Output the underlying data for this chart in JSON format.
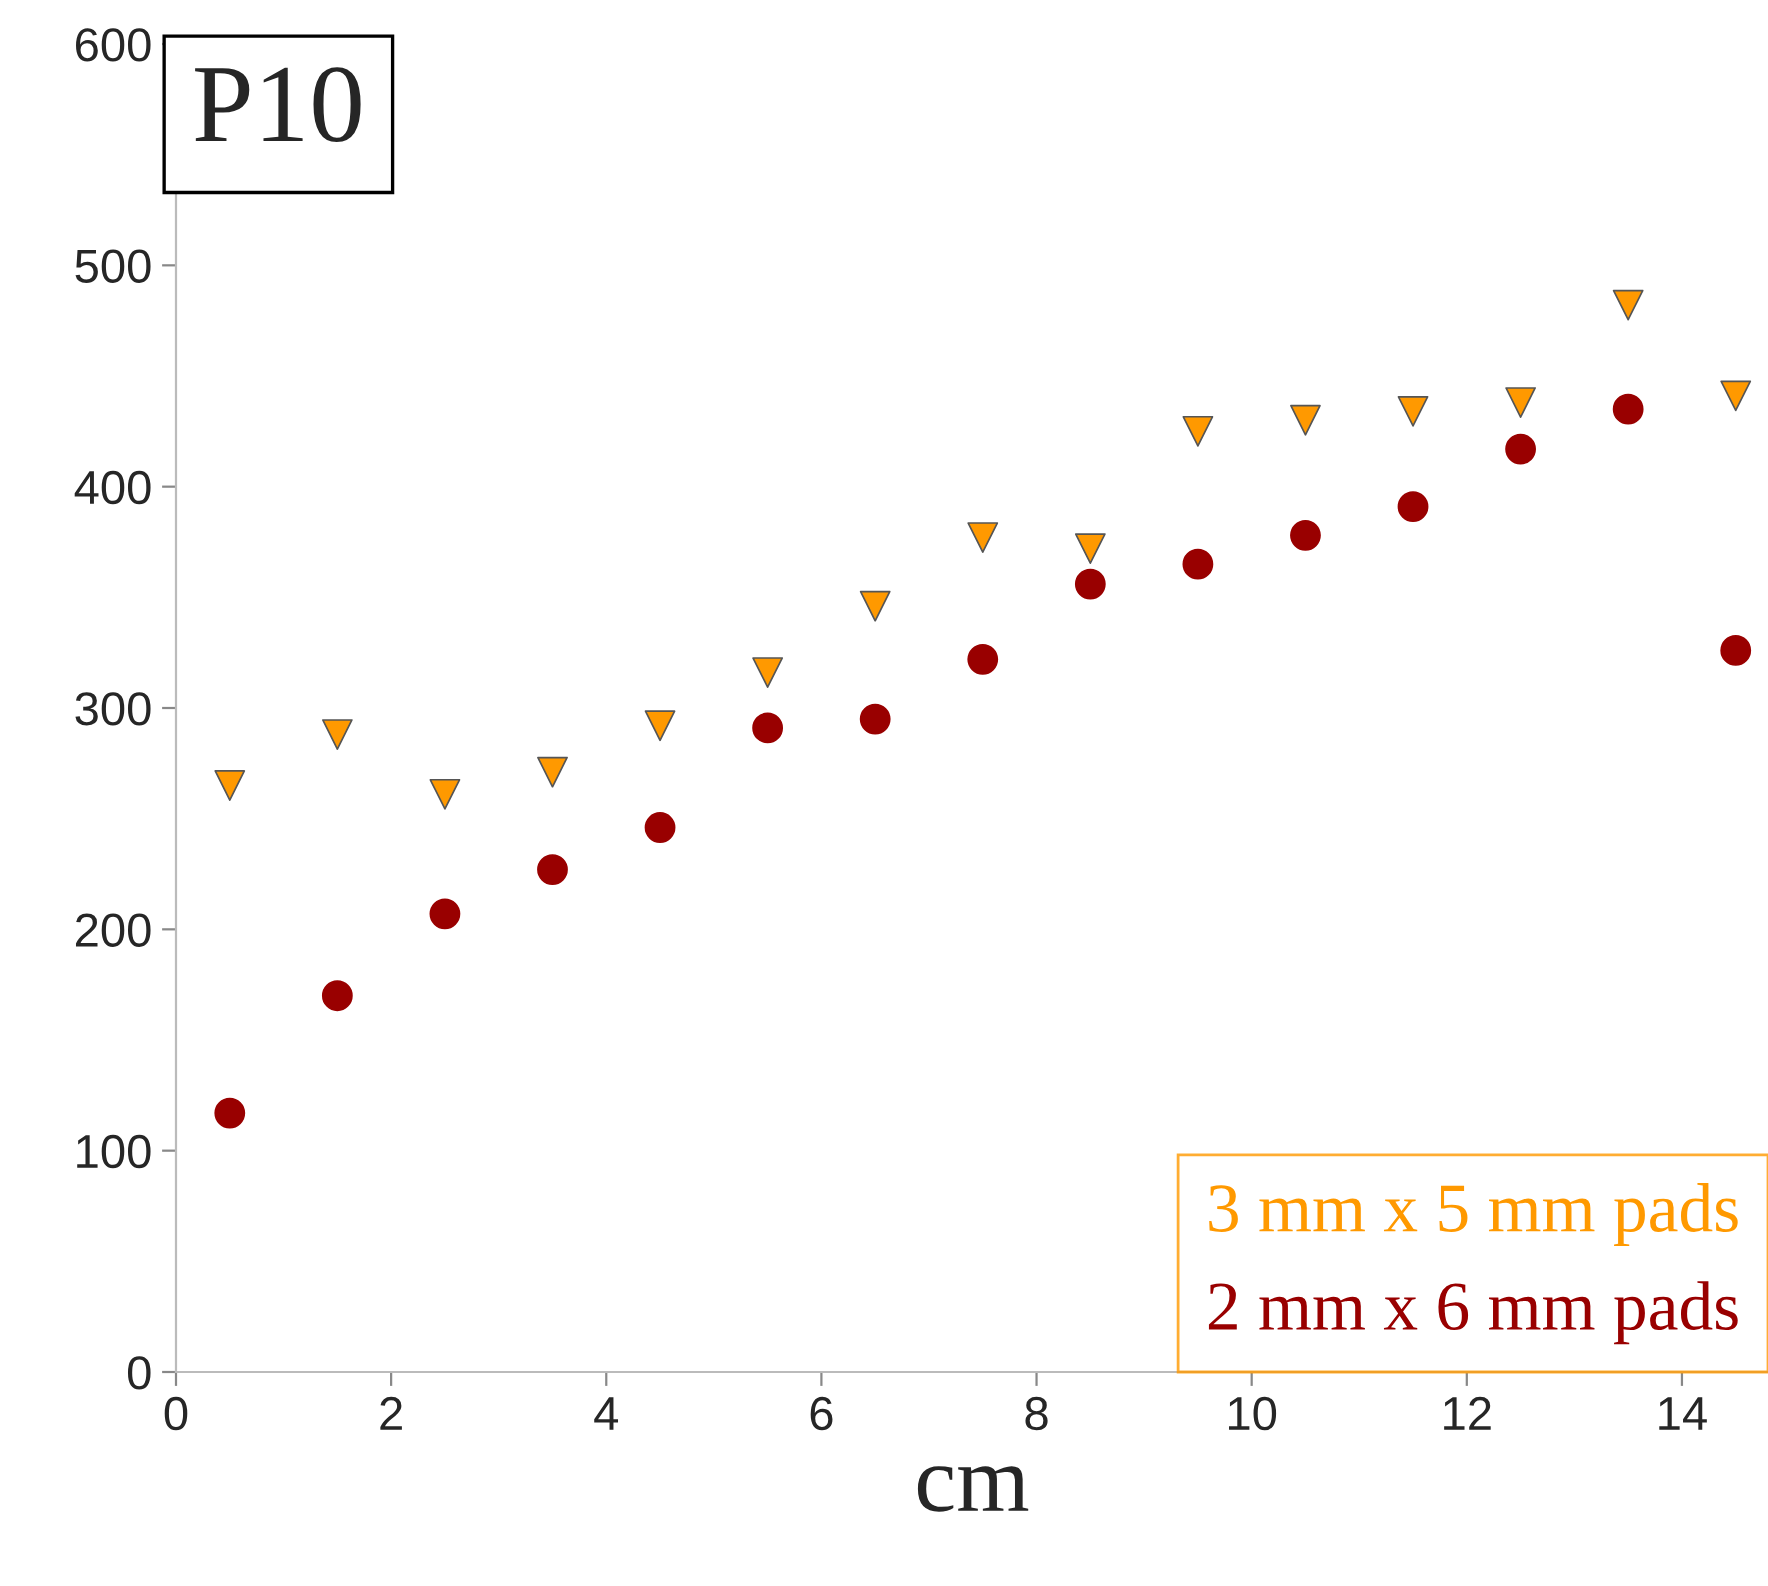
{
  "chart_data": {
    "type": "scatter",
    "xlabel": "cm",
    "annotations": [
      "P10"
    ],
    "xlim": [
      0,
      14.8
    ],
    "ylim": [
      0,
      600
    ],
    "xticks": [
      0,
      2,
      4,
      6,
      8,
      10,
      12,
      14
    ],
    "yticks": [
      0,
      100,
      200,
      300,
      400,
      500,
      600
    ],
    "grid": false,
    "legend": "bottom right",
    "series": [
      {
        "name": "3 mm x 5 mm pads",
        "color": "#ff9900",
        "marker": "triangle",
        "x": [
          0.5,
          1.5,
          2.5,
          3.5,
          4.5,
          5.5,
          6.5,
          7.5,
          8.5,
          9.5,
          10.5,
          11.5,
          12.5,
          13.5,
          14.5
        ],
        "values": [
          265,
          288,
          261,
          271,
          292,
          316,
          346,
          377,
          372,
          425,
          430,
          434,
          438,
          482,
          441
        ]
      },
      {
        "name": "2 mm x 6 mm pads",
        "color": "#990000",
        "marker": "circle",
        "x": [
          0.5,
          1.5,
          2.5,
          3.5,
          4.5,
          5.5,
          6.5,
          7.5,
          8.5,
          9.5,
          10.5,
          11.5,
          12.5,
          13.5,
          14.5
        ],
        "values": [
          117,
          170,
          207,
          227,
          246,
          291,
          295,
          322,
          356,
          365,
          378,
          391,
          417,
          435,
          326
        ]
      }
    ]
  }
}
